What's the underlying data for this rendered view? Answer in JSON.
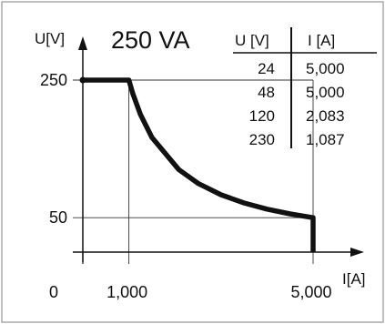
{
  "chart_data": {
    "type": "line",
    "title": "250 VA",
    "xlabel": "I[A]",
    "ylabel": "U[V]",
    "x_ticks": [
      "1,000",
      "5,000"
    ],
    "y_ticks": [
      "250",
      "50"
    ],
    "origin_label": "0",
    "series": [
      {
        "x": [
          0,
          1.0,
          1.087,
          1.25,
          1.5,
          2.083,
          2.5,
          3.0,
          3.5,
          4.0,
          4.5,
          5.0,
          5.0
        ],
        "y": [
          250,
          250,
          230,
          200,
          166.7,
          120,
          100,
          83.3,
          71.4,
          62.5,
          55.6,
          50,
          0
        ]
      }
    ],
    "xlim": [
      0,
      5.0
    ],
    "ylim": [
      0,
      250
    ],
    "table": {
      "headers": [
        "U [V]",
        "I [A]"
      ],
      "rows": [
        [
          "24",
          "5,000"
        ],
        [
          "48",
          "5,000"
        ],
        [
          "120",
          "2,083"
        ],
        [
          "230",
          "1,087"
        ]
      ]
    }
  }
}
